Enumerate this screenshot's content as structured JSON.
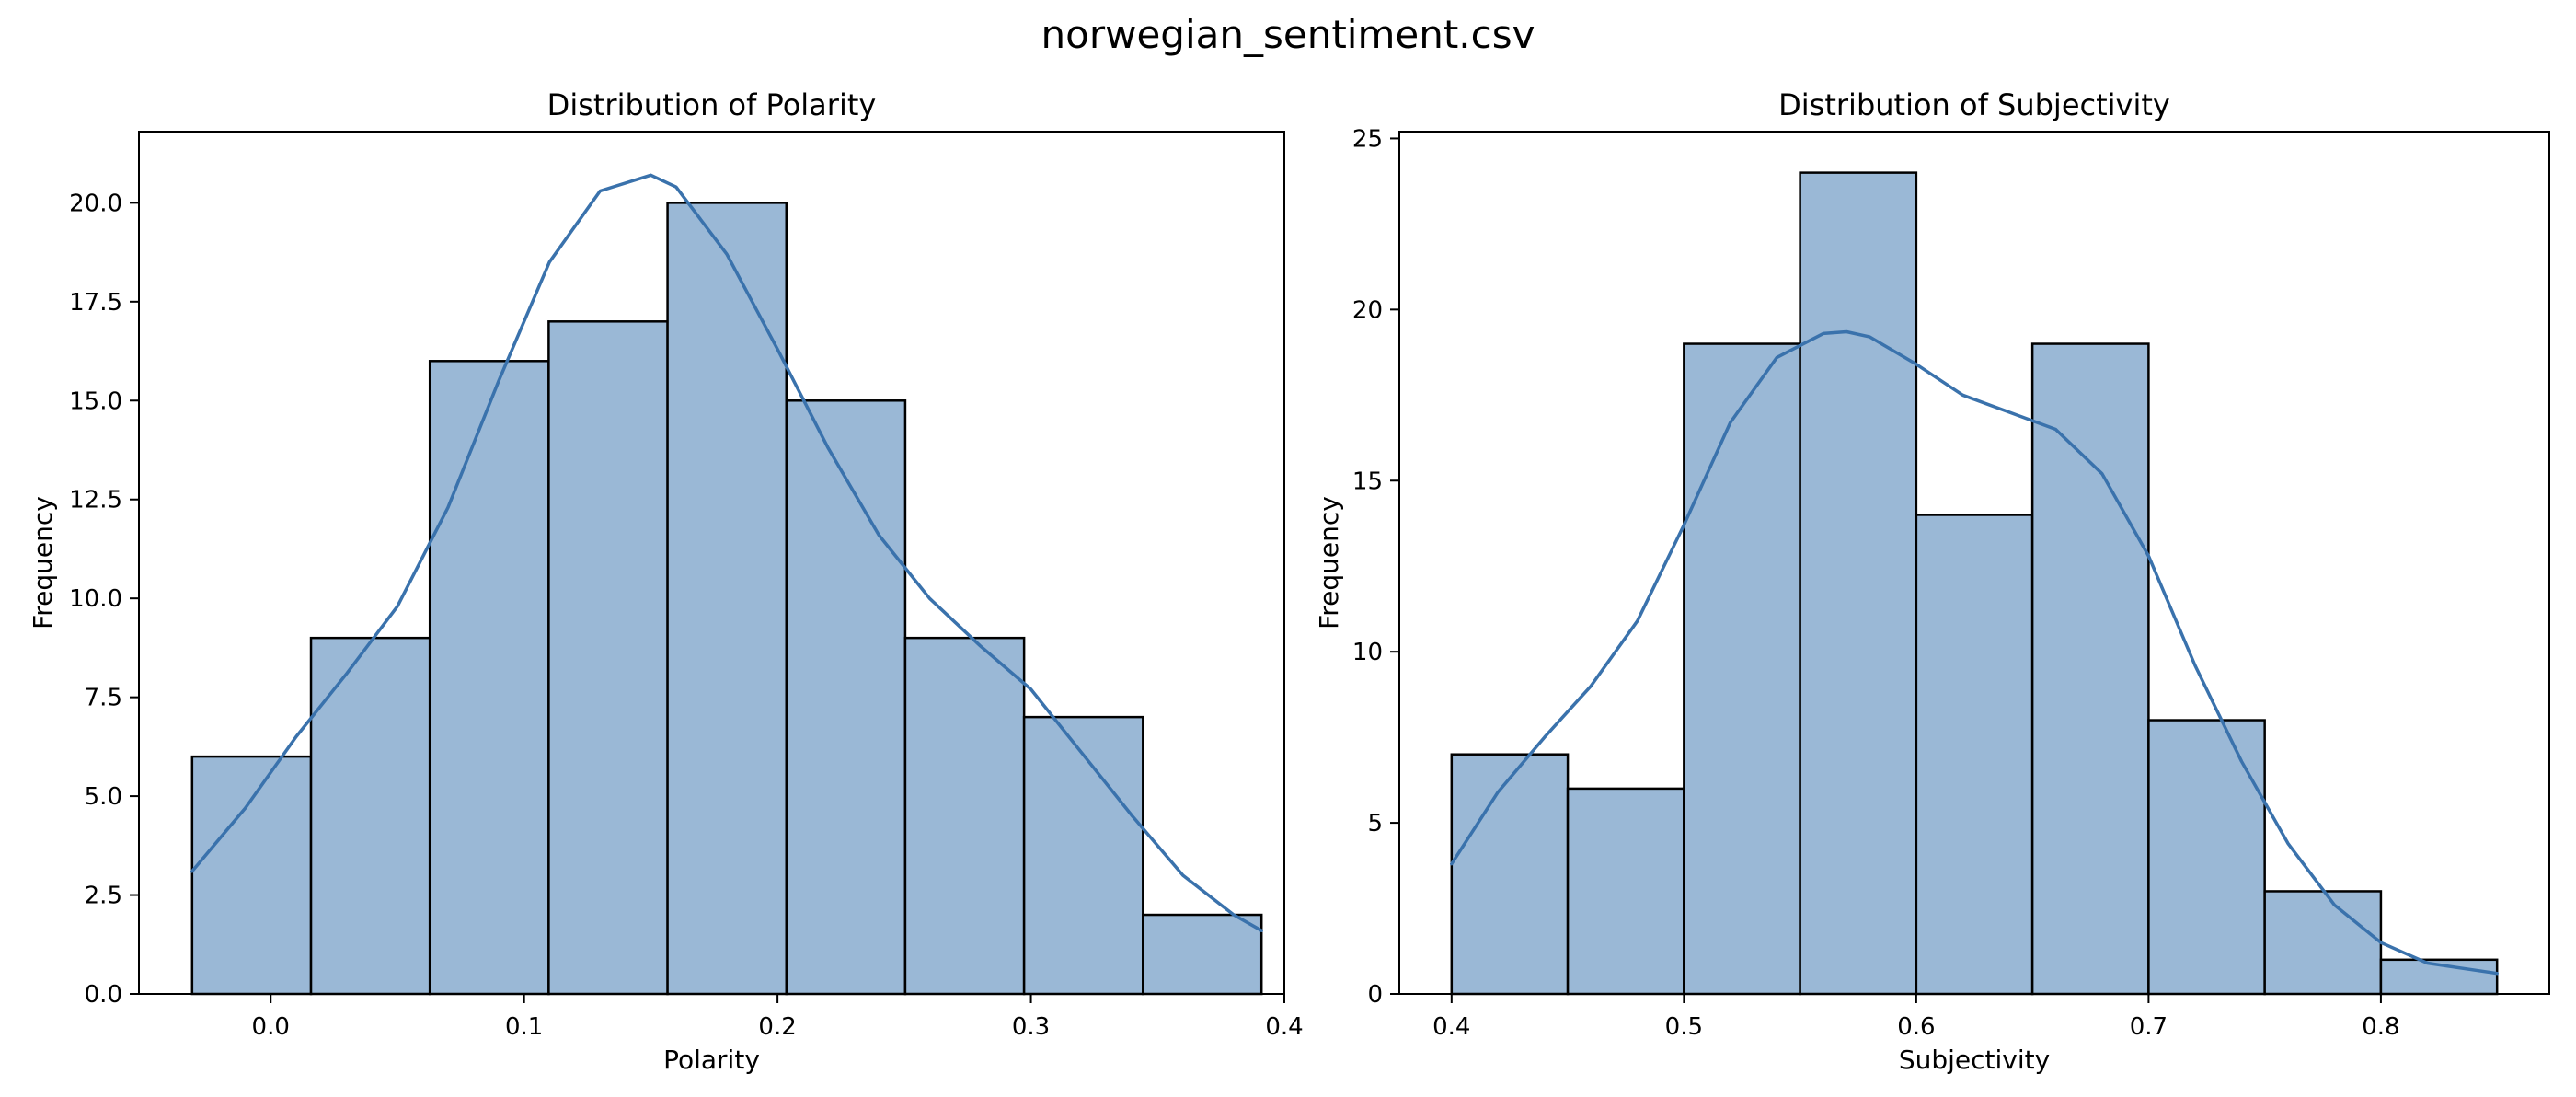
{
  "figure": {
    "suptitle": "norwegian_sentiment.csv"
  },
  "colors": {
    "bar_fill": "#9ab8d6",
    "bar_edge": "#000000",
    "kde_line": "#3a72ac"
  },
  "chart_data": [
    {
      "type": "bar",
      "kind": "histogram_with_kde",
      "title": "Distribution of Polarity",
      "xlabel": "Polarity",
      "ylabel": "Frequency",
      "xlim": [
        -0.052,
        0.4
      ],
      "ylim": [
        0,
        21.8
      ],
      "xticks": [
        0.0,
        0.1,
        0.2,
        0.3,
        0.4
      ],
      "xtick_labels": [
        "0.0",
        "0.1",
        "0.2",
        "0.3",
        "0.4"
      ],
      "yticks": [
        0,
        2.5,
        5,
        7.5,
        10,
        12.5,
        15,
        17.5,
        20
      ],
      "ytick_labels": [
        "0.0",
        "2.5",
        "5.0",
        "7.5",
        "10.0",
        "12.5",
        "15.0",
        "17.5",
        "20.0"
      ],
      "bin_edges": [
        -0.031,
        0.0159,
        0.0628,
        0.1097,
        0.1566,
        0.2035,
        0.2504,
        0.2973,
        0.3442,
        0.391
      ],
      "values": [
        6,
        9,
        16,
        17,
        20,
        15,
        9,
        7,
        2
      ],
      "kde": {
        "x": [
          -0.031,
          -0.01,
          0.01,
          0.03,
          0.05,
          0.07,
          0.09,
          0.11,
          0.13,
          0.15,
          0.16,
          0.18,
          0.2,
          0.22,
          0.24,
          0.26,
          0.28,
          0.3,
          0.32,
          0.34,
          0.36,
          0.38,
          0.391
        ],
        "y": [
          3.1,
          4.7,
          6.5,
          8.1,
          9.8,
          12.3,
          15.5,
          18.5,
          20.3,
          20.7,
          20.4,
          18.7,
          16.3,
          13.8,
          11.6,
          10.0,
          8.8,
          7.7,
          6.1,
          4.5,
          3.0,
          2.0,
          1.6
        ]
      },
      "grid": false
    },
    {
      "type": "bar",
      "kind": "histogram_with_kde",
      "title": "Distribution of Subjectivity",
      "xlabel": "Subjectivity",
      "ylabel": "Frequency",
      "xlim": [
        0.3775,
        0.8725
      ],
      "ylim": [
        0,
        25.2
      ],
      "xticks": [
        0.4,
        0.5,
        0.6,
        0.7,
        0.8
      ],
      "xtick_labels": [
        "0.4",
        "0.5",
        "0.6",
        "0.7",
        "0.8"
      ],
      "yticks": [
        0,
        5,
        10,
        15,
        20,
        25
      ],
      "ytick_labels": [
        "0",
        "5",
        "10",
        "15",
        "20",
        "25"
      ],
      "bin_edges": [
        0.4,
        0.45,
        0.5,
        0.55,
        0.6,
        0.65,
        0.7,
        0.75,
        0.8,
        0.85
      ],
      "values": [
        7,
        6,
        19,
        24,
        14,
        19,
        8,
        3,
        1
      ],
      "kde": {
        "x": [
          0.4,
          0.42,
          0.44,
          0.46,
          0.48,
          0.5,
          0.52,
          0.54,
          0.56,
          0.57,
          0.58,
          0.6,
          0.62,
          0.64,
          0.66,
          0.68,
          0.7,
          0.72,
          0.74,
          0.76,
          0.78,
          0.8,
          0.82,
          0.85
        ],
        "y": [
          3.8,
          5.9,
          7.5,
          9.0,
          10.9,
          13.7,
          16.7,
          18.6,
          19.3,
          19.35,
          19.2,
          18.4,
          17.5,
          17.0,
          16.5,
          15.2,
          12.8,
          9.6,
          6.8,
          4.4,
          2.6,
          1.5,
          0.9,
          0.6
        ]
      },
      "grid": false
    }
  ]
}
